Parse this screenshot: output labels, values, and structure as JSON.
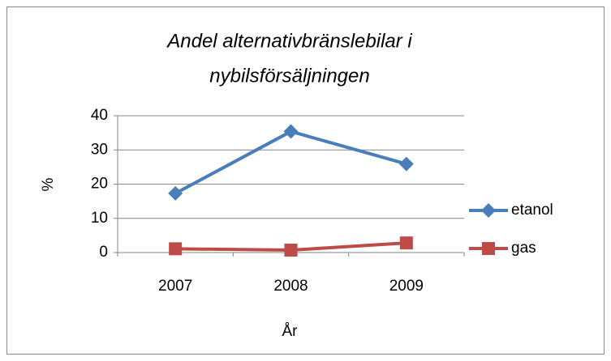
{
  "chart_data": {
    "type": "line",
    "title": [
      "Andel alternativbränslebilar i",
      "nybilsförsäljningen"
    ],
    "x_label": "År",
    "y_label": "%",
    "categories": [
      "2007",
      "2008",
      "2009"
    ],
    "series": [
      {
        "name": "etanol",
        "color": "#4a7ebb",
        "marker": "diamond",
        "values": [
          17.3,
          35.4,
          25.9
        ]
      },
      {
        "name": "gas",
        "color": "#be4b48",
        "marker": "square",
        "values": [
          1.1,
          0.7,
          2.8
        ]
      }
    ],
    "ylim": [
      0,
      40
    ],
    "yticks": [
      0,
      10,
      20,
      30,
      40
    ],
    "grid": true,
    "legend": "right"
  }
}
